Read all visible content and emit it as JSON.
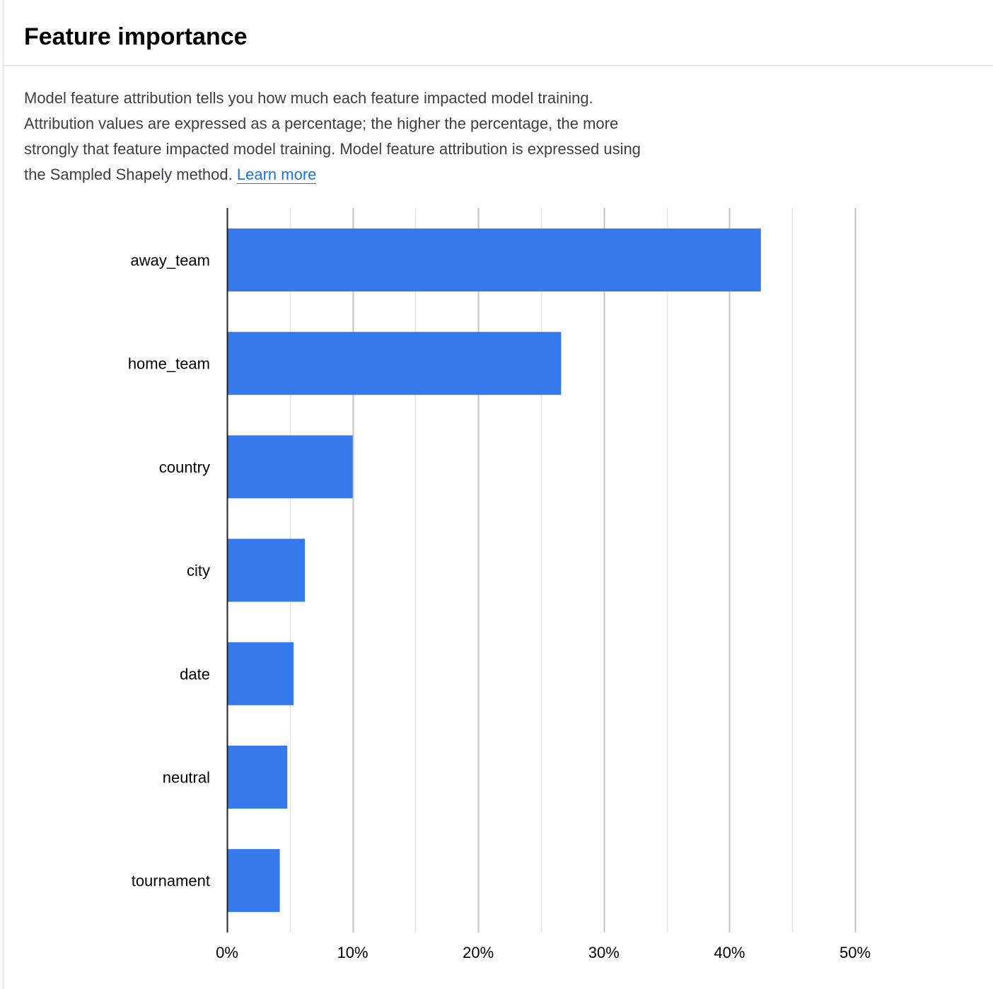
{
  "header": {
    "title": "Feature importance"
  },
  "description": {
    "text": "Model feature attribution tells you how much each feature impacted model training. Attribution values are expressed as a percentage; the higher the percentage, the more strongly that feature impacted model training. Model feature attribution is expressed using the Sampled Shapely method.",
    "link_label": "Learn more"
  },
  "colors": {
    "bar": "#3679ed",
    "link": "#1a73e8",
    "major_grid": "#c4c4c4",
    "minor_grid": "#e5e5e5",
    "axis": "#222222"
  },
  "chart_data": {
    "type": "bar",
    "orientation": "horizontal",
    "title": "",
    "xlabel": "",
    "ylabel": "",
    "categories": [
      "away_team",
      "home_team",
      "country",
      "city",
      "date",
      "neutral",
      "tournament"
    ],
    "values": [
      42.5,
      26.6,
      10.0,
      6.2,
      5.3,
      4.8,
      4.2
    ],
    "unit": "%",
    "xlim": [
      0,
      50
    ],
    "ticks": [
      {
        "value": 0,
        "label": "0%"
      },
      {
        "value": 10,
        "label": "10%"
      },
      {
        "value": 20,
        "label": "20%"
      },
      {
        "value": 30,
        "label": "30%"
      },
      {
        "value": 40,
        "label": "40%"
      },
      {
        "value": 50,
        "label": "50%"
      }
    ],
    "minor_gridlines": [
      5,
      15,
      25,
      35,
      45
    ],
    "grid": true
  }
}
